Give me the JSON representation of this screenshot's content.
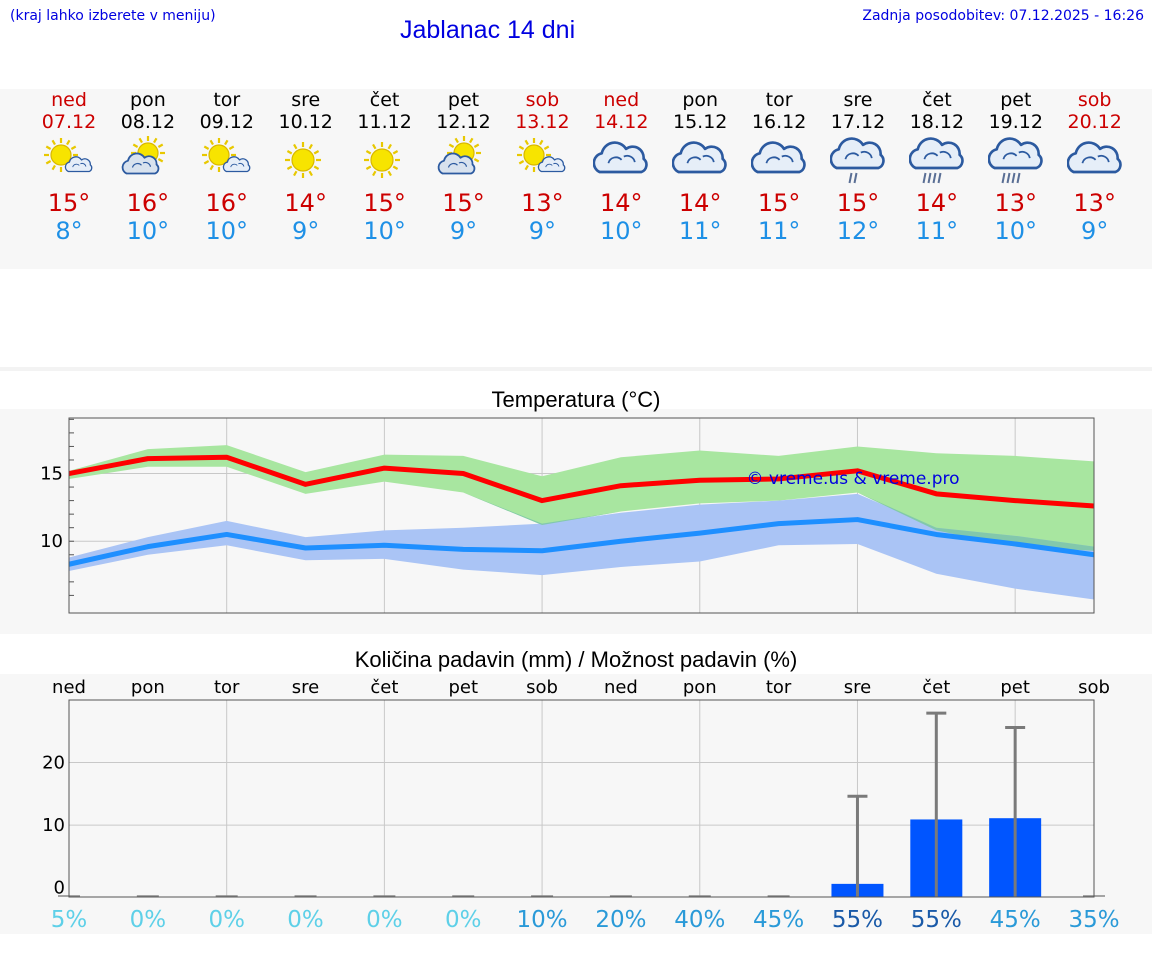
{
  "header": {
    "hint": "(kraj lahko izberete v meniju)",
    "title": "Jablanac 14 dni",
    "updated": "Zadnja posodobitev: 07.12.2025 - 16:26"
  },
  "days": [
    {
      "name": "ned",
      "date": "07.12",
      "weekend": true,
      "icon": "sun-cloud-icon",
      "tmax": "15°",
      "tmin": "8°"
    },
    {
      "name": "pon",
      "date": "08.12",
      "weekend": false,
      "icon": "cloud-sun-icon",
      "tmax": "16°",
      "tmin": "10°"
    },
    {
      "name": "tor",
      "date": "09.12",
      "weekend": false,
      "icon": "sun-cloud-icon",
      "tmax": "16°",
      "tmin": "10°"
    },
    {
      "name": "sre",
      "date": "10.12",
      "weekend": false,
      "icon": "sun-icon",
      "tmax": "14°",
      "tmin": "9°"
    },
    {
      "name": "čet",
      "date": "11.12",
      "weekend": false,
      "icon": "sun-icon",
      "tmax": "15°",
      "tmin": "10°"
    },
    {
      "name": "pet",
      "date": "12.12",
      "weekend": false,
      "icon": "cloud-sun-icon",
      "tmax": "15°",
      "tmin": "9°"
    },
    {
      "name": "sob",
      "date": "13.12",
      "weekend": true,
      "icon": "sun-cloud-icon",
      "tmax": "13°",
      "tmin": "9°"
    },
    {
      "name": "ned",
      "date": "14.12",
      "weekend": true,
      "icon": "cloud-icon",
      "tmax": "14°",
      "tmin": "10°"
    },
    {
      "name": "pon",
      "date": "15.12",
      "weekend": false,
      "icon": "cloud-icon",
      "tmax": "14°",
      "tmin": "11°"
    },
    {
      "name": "tor",
      "date": "16.12",
      "weekend": false,
      "icon": "cloud-icon",
      "tmax": "15°",
      "tmin": "11°"
    },
    {
      "name": "sre",
      "date": "17.12",
      "weekend": false,
      "icon": "cloud-light-rain-icon",
      "tmax": "15°",
      "tmin": "12°"
    },
    {
      "name": "čet",
      "date": "18.12",
      "weekend": false,
      "icon": "cloud-rain-icon",
      "tmax": "14°",
      "tmin": "11°"
    },
    {
      "name": "pet",
      "date": "19.12",
      "weekend": false,
      "icon": "cloud-rain-icon",
      "tmax": "13°",
      "tmin": "10°"
    },
    {
      "name": "sob",
      "date": "20.12",
      "weekend": true,
      "icon": "cloud-icon",
      "tmax": "13°",
      "tmin": "9°"
    }
  ],
  "colors": {
    "max_line": "#ff0000",
    "min_line": "#1e8fff",
    "max_band": "#a8e6a0",
    "min_band": "#aac4f5",
    "overlap_band": "#80c8a8",
    "bar": "#0055ff",
    "weekend": "#cc0000",
    "min_text": "#1e90e6"
  },
  "chart_data": [
    {
      "type": "line",
      "title": "Temperatura (°C)",
      "watermark": "© vreme.us & vreme.pro",
      "ylim": [
        4.7,
        19.1
      ],
      "yticks": [
        10,
        15
      ],
      "x": [
        0,
        1,
        2,
        3,
        4,
        5,
        6,
        7,
        8,
        9,
        10,
        11,
        12,
        13
      ],
      "series": [
        {
          "name": "max",
          "values": [
            15,
            16.1,
            16.2,
            14.2,
            15.4,
            15,
            13,
            14.1,
            14.5,
            14.6,
            15.2,
            13.5,
            13,
            12.6
          ]
        },
        {
          "name": "min",
          "values": [
            8.3,
            9.6,
            10.5,
            9.5,
            9.7,
            9.4,
            9.3,
            10,
            10.6,
            11.3,
            11.6,
            10.5,
            9.8,
            9
          ]
        }
      ],
      "bands": [
        {
          "name": "max_range",
          "upper": [
            15.2,
            16.8,
            17.1,
            15.1,
            16.4,
            16.3,
            14.8,
            16.2,
            16.7,
            16.3,
            17,
            16.5,
            16.3,
            15.9
          ],
          "lower": [
            14.6,
            15.5,
            15.5,
            13.5,
            14.4,
            13.6,
            11.2,
            12.2,
            12.8,
            13,
            13.6,
            10.8,
            9.6,
            9.3
          ]
        },
        {
          "name": "min_range",
          "upper": [
            8.8,
            10.3,
            11.5,
            10.3,
            10.8,
            11,
            11.3,
            12.1,
            12.7,
            13,
            13.5,
            11,
            10.4,
            9.6
          ]
        },
        {
          "name": "min_range_lower",
          "values": [
            7.8,
            9,
            9.7,
            8.6,
            8.7,
            7.9,
            7.5,
            8.1,
            8.5,
            9.7,
            9.8,
            7.6,
            6.5,
            5.7
          ]
        }
      ]
    },
    {
      "type": "bar",
      "title": "Količina padavin (mm) / Možnost padavin (%)",
      "categories": [
        "ned",
        "pon",
        "tor",
        "sre",
        "čet",
        "pet",
        "sob",
        "ned",
        "pon",
        "tor",
        "sre",
        "čet",
        "pet",
        "sob"
      ],
      "ylim": [
        -1.5,
        30
      ],
      "yticks": [
        0,
        10,
        20
      ],
      "values": [
        0,
        0,
        0,
        0,
        0,
        0,
        0,
        0,
        0,
        0,
        0.6,
        10.9,
        11.1,
        0
      ],
      "error_upper": [
        0,
        0,
        0,
        0,
        0,
        0,
        0,
        0,
        0,
        0,
        14.6,
        27.9,
        25.6,
        0
      ],
      "probability": [
        "5%",
        "0%",
        "0%",
        "0%",
        "0%",
        "0%",
        "10%",
        "20%",
        "40%",
        "45%",
        "55%",
        "55%",
        "45%",
        "35%"
      ],
      "probability_values": [
        5,
        0,
        0,
        0,
        0,
        0,
        10,
        20,
        40,
        45,
        55,
        55,
        45,
        35
      ]
    }
  ]
}
